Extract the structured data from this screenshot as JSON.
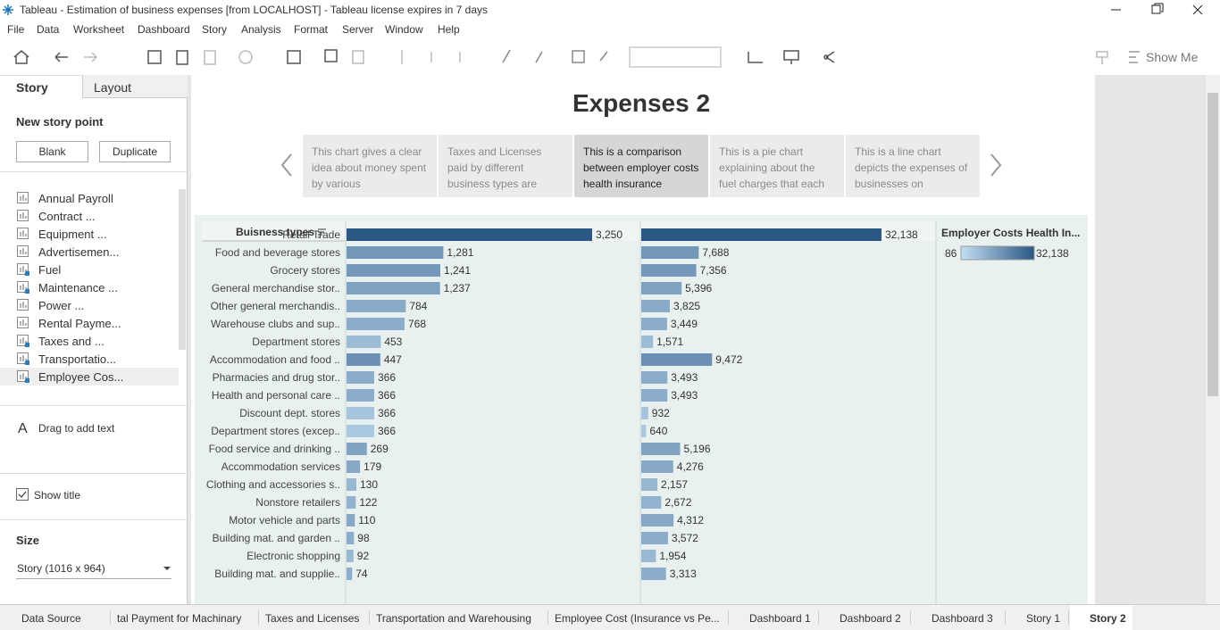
{
  "window": {
    "title": "Tableau - Estimation of business expenses [from LOCALHOST] - Tableau license expires in 7 days"
  },
  "menu": [
    "File",
    "Data",
    "Worksheet",
    "Dashboard",
    "Story",
    "Analysis",
    "Format",
    "Server",
    "Window",
    "Help"
  ],
  "toolbar": {
    "show_me": "Show Me"
  },
  "story_pane": {
    "tabs": [
      "Story",
      "Layout"
    ],
    "new_story_point": "New story point",
    "buttons": [
      "Blank",
      "Duplicate"
    ],
    "sheets": [
      "Annual Payroll",
      "Contract ...",
      "Equipment ...",
      "Advertisemen...",
      "Fuel",
      "Maintenance ...",
      "Power ...",
      "Rental Payme...",
      "Taxes and ...",
      "Transportatio...",
      "Employee Cos..."
    ],
    "drag_text": "Drag to add text",
    "show_title": "Show title",
    "size_label": "Size",
    "size_value": "Story (1016 x 964)"
  },
  "story": {
    "title": "Expenses 2",
    "points": [
      "This chart gives a clear idea about money spent by various",
      "Taxes and Licenses paid by different business types are",
      "This is a comparison between employer costs health insurance",
      "This is a pie chart explaining about the fuel charges that each",
      "This is a line chart depicts the expenses of businesses on"
    ]
  },
  "chart_data": {
    "type": "bar",
    "y_label": "Buisness types",
    "categories": [
      "Retail Trade",
      "Food and beverage stores",
      "Grocery stores",
      "General merchandise stor..",
      "Other general merchandis..",
      "Warehouse clubs and sup..",
      "Department stores",
      "Accommodation and food ..",
      "Pharmacies and drug stor..",
      "Health and personal care ..",
      "Discount dept. stores",
      "Department stores (excep..",
      "Food service and drinking ..",
      "Accommodation services",
      "Clothing and accessories s..",
      "Nonstore retailers",
      "Motor vehicle and parts",
      "Building mat. and garden ..",
      "Electronic shopping",
      "Building mat. and supplie.."
    ],
    "series": [
      {
        "values": [
          3250,
          1281,
          1241,
          1237,
          784,
          768,
          453,
          447,
          366,
          366,
          366,
          366,
          269,
          179,
          130,
          122,
          110,
          98,
          92,
          74
        ],
        "value_labels": [
          "3,250",
          "1,281",
          "1,241",
          "1,237",
          "784",
          "768",
          "453",
          "447",
          "366",
          "366",
          "366",
          "366",
          "269",
          "179",
          "130",
          "122",
          "110",
          "98",
          "92",
          "74"
        ]
      },
      {
        "values": [
          32138,
          7688,
          7356,
          5396,
          3825,
          3449,
          1571,
          9472,
          3493,
          3493,
          932,
          640,
          5196,
          4276,
          2157,
          2672,
          4312,
          3572,
          1954,
          3313
        ],
        "value_labels": [
          "32,138",
          "7,688",
          "7,356",
          "5,396",
          "3,825",
          "3,449",
          "1,571",
          "9,472",
          "3,493",
          "3,493",
          "932",
          "640",
          "5,196",
          "4,276",
          "2,157",
          "2,672",
          "4,312",
          "3,572",
          "1,954",
          "3,313"
        ]
      }
    ],
    "color_legend": {
      "title": "Employer Costs Health In...",
      "color_low": "#c4def3",
      "color_high": "#2a5783",
      "ticks": [
        {
          "value": 86,
          "label": "86"
        },
        {
          "value": 32138,
          "label": "32,138"
        }
      ]
    }
  },
  "tabs": [
    "Data Source",
    "tal Payment for Machinary",
    "Taxes and Licenses",
    "Transportation and Warehousing",
    "Employee Cost (Insurance vs Pe...",
    "Dashboard 1",
    "Dashboard 2",
    "Dashboard 3",
    "Story 1",
    "Story 2"
  ]
}
